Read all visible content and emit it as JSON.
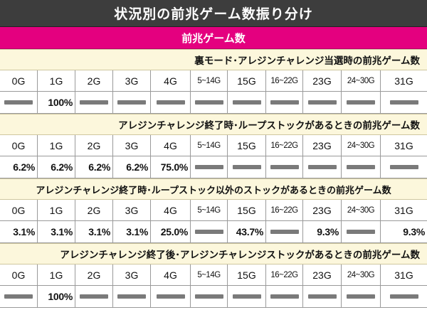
{
  "title": "状況別の前兆ゲーム数振り分け",
  "subtitle": "前兆ゲーム数",
  "columns": [
    "0G",
    "1G",
    "2G",
    "3G",
    "4G",
    "5~14G",
    "15G",
    "16~22G",
    "23G",
    "24~30G",
    "31G"
  ],
  "sections": [
    {
      "heading": "裏モード･アレジンチャレンジ当選時の前兆ゲーム数",
      "values": [
        "",
        "100%",
        "",
        "",
        "",
        "",
        "",
        "",
        "",
        "",
        ""
      ]
    },
    {
      "heading": "アレジンチャレンジ終了時･ループストックがあるときの前兆ゲーム数",
      "values": [
        "6.2%",
        "6.2%",
        "6.2%",
        "6.2%",
        "75.0%",
        "",
        "",
        "",
        "",
        "",
        ""
      ]
    },
    {
      "heading": "アレジンチャレンジ終了時･ループストック以外のストックがあるときの前兆ゲーム数",
      "values": [
        "3.1%",
        "3.1%",
        "3.1%",
        "3.1%",
        "25.0%",
        "",
        "43.7%",
        "",
        "9.3%",
        "",
        "9.3%"
      ]
    },
    {
      "heading": "アレジンチャレンジ終了後･アレジンチャレンジストックがあるときの前兆ゲーム数",
      "values": [
        "",
        "100%",
        "",
        "",
        "",
        "",
        "",
        "",
        "",
        "",
        ""
      ]
    }
  ]
}
